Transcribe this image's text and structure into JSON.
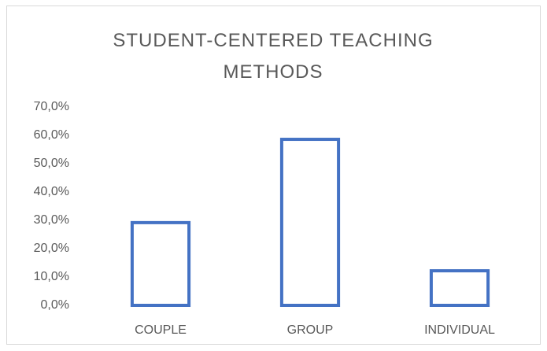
{
  "chart_data": {
    "type": "bar",
    "title": "STUDENT-CENTERED TEACHING METHODS",
    "categories": [
      "COUPLE",
      "GROUP",
      "INDIVIDUAL"
    ],
    "values": [
      29.2,
      58.6,
      12.2
    ],
    "color": "#4472c4",
    "ylim": [
      0,
      70
    ],
    "yticks": [
      {
        "value": 0,
        "label": "0,0%"
      },
      {
        "value": 10,
        "label": "10,0%"
      },
      {
        "value": 20,
        "label": "20,0%"
      },
      {
        "value": 30,
        "label": "30,0%"
      },
      {
        "value": 40,
        "label": "40,0%"
      },
      {
        "value": 50,
        "label": "50,0%"
      },
      {
        "value": 60,
        "label": "60,0%"
      },
      {
        "value": 70,
        "label": "70,0%"
      }
    ],
    "grid": false
  }
}
